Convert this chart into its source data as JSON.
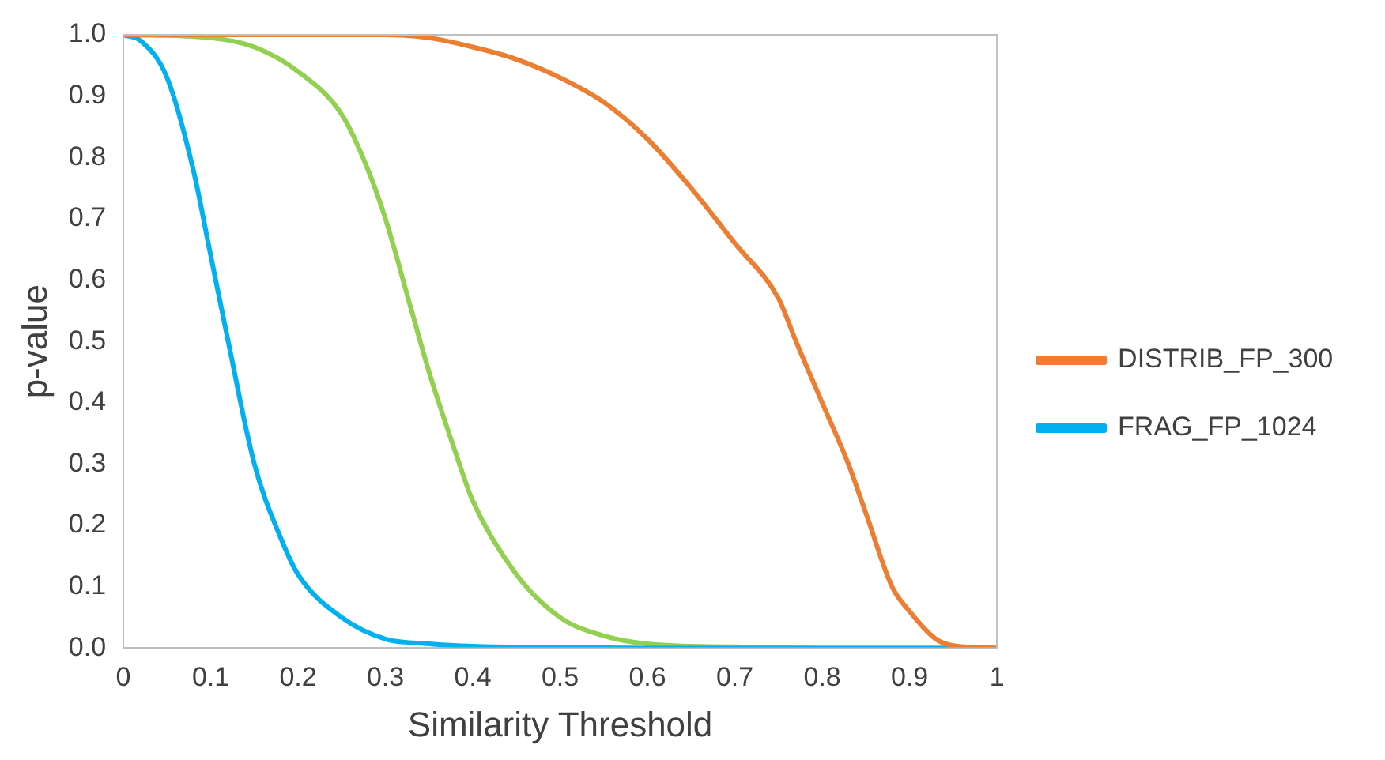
{
  "chart_data": {
    "type": "line",
    "xlabel": "Similarity Threshold",
    "ylabel": "p-value",
    "xlim": [
      0,
      1
    ],
    "ylim": [
      0,
      1
    ],
    "xticks": [
      0,
      0.1,
      0.2,
      0.3,
      0.4,
      0.5,
      0.6,
      0.7,
      0.8,
      0.9,
      1
    ],
    "yticks": [
      {
        "value": 0,
        "label": "0.0"
      },
      {
        "value": 0.1,
        "label": "0.1"
      },
      {
        "value": 0.2,
        "label": "0.2"
      },
      {
        "value": 0.3,
        "label": "0.3"
      },
      {
        "value": 0.4,
        "label": "0.4"
      },
      {
        "value": 0.5,
        "label": "0.5"
      },
      {
        "value": 0.6,
        "label": "0.6"
      },
      {
        "value": 0.7,
        "label": "0.7"
      },
      {
        "value": 0.8,
        "label": "0.8"
      },
      {
        "value": 0.9,
        "label": "0.9"
      },
      {
        "value": 1,
        "label": "1.0"
      }
    ],
    "grid": false,
    "legend": "right",
    "marker": "none",
    "line_style": "solid",
    "series": [
      {
        "name": "DISTRIB_FP_300",
        "color": "#ed7d31",
        "x": [
          0,
          0.1,
          0.2,
          0.3,
          0.35,
          0.4,
          0.45,
          0.5,
          0.55,
          0.6,
          0.65,
          0.7,
          0.75,
          0.77,
          0.8,
          0.83,
          0.85,
          0.88,
          0.9,
          0.93,
          0.95,
          1
        ],
        "values": [
          1,
          1,
          1,
          1,
          0.995,
          0.98,
          0.96,
          0.93,
          0.89,
          0.83,
          0.75,
          0.66,
          0.57,
          0.5,
          0.4,
          0.3,
          0.22,
          0.1,
          0.06,
          0.015,
          0.004,
          0
        ]
      },
      {
        "name": "FRAG_FP_1024",
        "color": "#00b0f0",
        "x": [
          0,
          0.02,
          0.05,
          0.08,
          0.1,
          0.12,
          0.15,
          0.18,
          0.2,
          0.25,
          0.3,
          0.35,
          0.4,
          0.5,
          0.6,
          1
        ],
        "values": [
          1,
          0.99,
          0.93,
          0.78,
          0.64,
          0.5,
          0.3,
          0.18,
          0.12,
          0.05,
          0.015,
          0.007,
          0.003,
          0.001,
          0,
          0
        ]
      },
      {
        "color": "#92d050",
        "x": [
          0,
          0.1,
          0.15,
          0.2,
          0.25,
          0.28,
          0.3,
          0.33,
          0.35,
          0.38,
          0.4,
          0.45,
          0.5,
          0.55,
          0.6,
          0.7,
          0.8,
          1
        ],
        "values": [
          1,
          0.995,
          0.98,
          0.94,
          0.87,
          0.78,
          0.7,
          0.55,
          0.45,
          0.32,
          0.24,
          0.12,
          0.05,
          0.02,
          0.007,
          0.002,
          0,
          0
        ]
      }
    ]
  }
}
